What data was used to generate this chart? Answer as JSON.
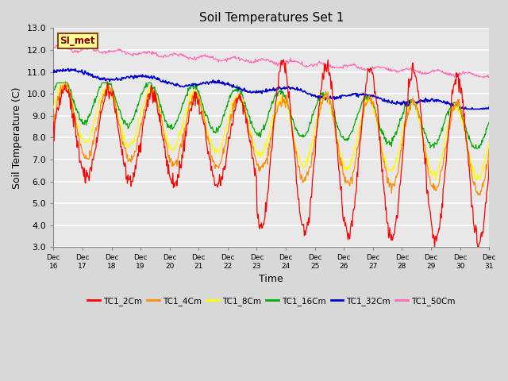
{
  "title": "Soil Temperatures Set 1",
  "xlabel": "Time",
  "ylabel": "Soil Temperature (C)",
  "ylim": [
    3.0,
    13.0
  ],
  "yticks": [
    3.0,
    4.0,
    5.0,
    6.0,
    7.0,
    8.0,
    9.0,
    10.0,
    11.0,
    12.0,
    13.0
  ],
  "fig_bg_color": "#d8d8d8",
  "plot_bg_color": "#e8e8e8",
  "annotation_text": "SI_met",
  "annotation_color": "#8B0000",
  "annotation_bg": "#FFFF99",
  "annotation_border": "#8B4513",
  "series_colors": {
    "TC1_2Cm": "#FF0000",
    "TC1_4Cm": "#FF8C00",
    "TC1_8Cm": "#FFFF00",
    "TC1_16Cm": "#00AA00",
    "TC1_32Cm": "#0000CC",
    "TC1_50Cm": "#FF69B4"
  },
  "n_points": 720,
  "xtick_labels": [
    "Dec 16",
    "Dec 17",
    "Dec 18",
    "Dec 19",
    "Dec 20",
    "Dec 21",
    "Dec 22",
    "Dec 23",
    "Dec 24",
    "Dec 25",
    "Dec 26",
    "Dec 27",
    "Dec 28",
    "Dec 29",
    "Dec 30",
    "Dec 31"
  ]
}
